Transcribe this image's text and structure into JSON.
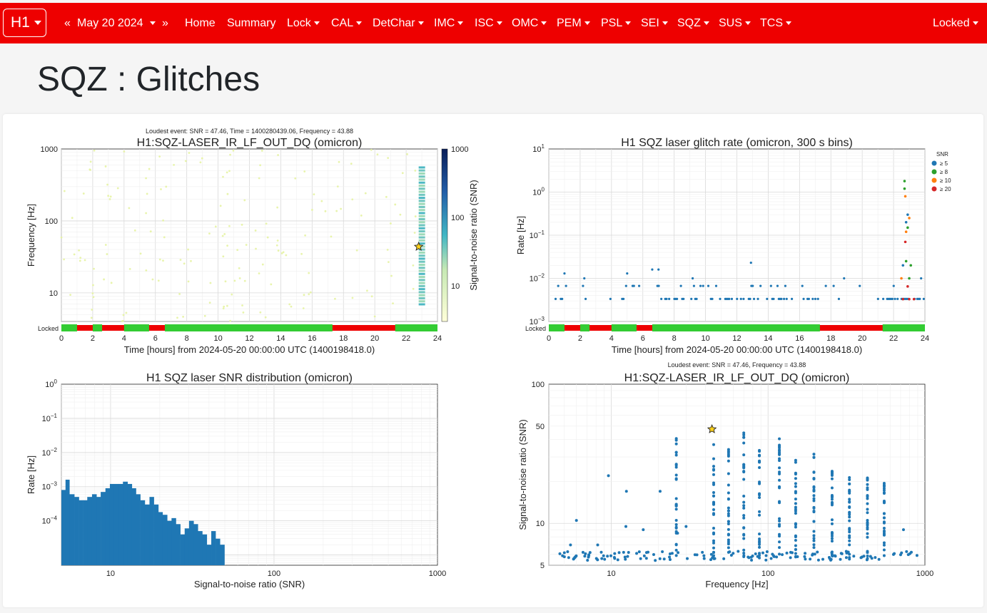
{
  "nav": {
    "ifo": "H1",
    "prev": "«",
    "date": "May 20 2024",
    "next": "»",
    "links": [
      "Home",
      "Summary"
    ],
    "menus": [
      "Lock",
      "CAL",
      "DetChar",
      "IMC",
      "ISC",
      "OMC",
      "PEM",
      "PSL",
      "SEI",
      "SQZ",
      "SUS",
      "TCS"
    ],
    "state": "Locked"
  },
  "page_title": "SQZ : Glitches",
  "colors": {
    "navbar": "#ee0000",
    "marker": "#1f77b4",
    "locked_on": "#33cc33",
    "locked_off": "#ee0000"
  },
  "chart_data": [
    {
      "type": "scatter",
      "subtitle": "Loudest event: SNR = 47.46, Time = 1400280439.06, Frequency = 43.88",
      "title": "H1:SQZ-LASER_IR_LF_OUT_DQ (omicron)",
      "xlabel": "Time [hours] from 2024-05-20 00:00:00 UTC (1400198418.0)",
      "ylabel": "Frequency [Hz]",
      "colorbar_label": "Signal-to-noise ratio (SNR)",
      "colorbar_ticks": [
        "1000",
        "100",
        "10"
      ],
      "xlim": [
        0,
        24
      ],
      "ylim": [
        4,
        1000
      ],
      "yscale": "log",
      "xticks": [
        "0",
        "2",
        "4",
        "6",
        "8",
        "10",
        "12",
        "14",
        "16",
        "18",
        "20",
        "22",
        "24"
      ],
      "yticks": [
        "1000",
        "100",
        "10"
      ],
      "segment_label": "Locked",
      "loudest": {
        "x": 22.8,
        "y": 43.88
      }
    },
    {
      "type": "scatter",
      "title": "H1 SQZ laser glitch rate (omicron, 300 s bins)",
      "xlabel": "Time [hours] from 2024-05-20 00:00:00 UTC (1400198418.0)",
      "ylabel": "Rate [Hz]",
      "xlim": [
        0,
        24
      ],
      "ylim": [
        0.001,
        10
      ],
      "yscale": "log",
      "xticks": [
        "0",
        "2",
        "4",
        "6",
        "8",
        "10",
        "12",
        "14",
        "16",
        "18",
        "20",
        "22",
        "24"
      ],
      "yticks": [
        {
          "base": "10",
          "exp": "1"
        },
        {
          "base": "10",
          "exp": "0"
        },
        {
          "base": "10",
          "exp": "−1"
        },
        {
          "base": "10",
          "exp": "−2"
        },
        {
          "base": "10",
          "exp": "−3"
        }
      ],
      "legend_title": "SNR",
      "series": [
        {
          "name": "≥ 5",
          "color": "#1f77b4"
        },
        {
          "name": "≥ 8",
          "color": "#2ca02c"
        },
        {
          "name": "≥ 10",
          "color": "#ff7f0e"
        },
        {
          "name": "≥ 20",
          "color": "#d62728"
        }
      ],
      "segment_label": "Locked"
    },
    {
      "type": "bar",
      "title": "H1 SQZ laser SNR distribution (omicron)",
      "xlabel": "Signal-to-noise ratio (SNR)",
      "ylabel": "Rate [Hz]",
      "xscale": "log",
      "yscale": "log",
      "xlim": [
        5,
        1000
      ],
      "ylim": [
        5e-06,
        1
      ],
      "xticks": [
        "10",
        "100",
        "1000"
      ],
      "yticks": [
        {
          "base": "10",
          "exp": "0"
        },
        {
          "base": "10",
          "exp": "−1"
        },
        {
          "base": "10",
          "exp": "−2"
        },
        {
          "base": "10",
          "exp": "−3"
        },
        {
          "base": "10",
          "exp": "−4"
        }
      ],
      "bins": [
        [
          5.0,
          0.0008
        ],
        [
          5.3,
          0.0016
        ],
        [
          5.6,
          0.0006
        ],
        [
          6.0,
          0.0005
        ],
        [
          6.4,
          0.0004
        ],
        [
          6.8,
          0.0004
        ],
        [
          7.2,
          0.0005
        ],
        [
          7.7,
          0.0006
        ],
        [
          8.2,
          0.0005
        ],
        [
          8.7,
          0.0007
        ],
        [
          9.3,
          0.0009
        ],
        [
          9.9,
          0.0012
        ],
        [
          10.5,
          0.0012
        ],
        [
          11.2,
          0.0012
        ],
        [
          11.9,
          0.0014
        ],
        [
          12.7,
          0.0012
        ],
        [
          13.5,
          0.0009
        ],
        [
          14.3,
          0.0006
        ],
        [
          15.2,
          0.0004
        ],
        [
          16.2,
          0.0003
        ],
        [
          17.3,
          0.0005
        ],
        [
          18.4,
          0.0003
        ],
        [
          19.6,
          0.00018
        ],
        [
          20.8,
          0.00015
        ],
        [
          22.2,
          0.0001
        ],
        [
          23.6,
          0.00012
        ],
        [
          25.1,
          8e-05
        ],
        [
          26.7,
          4e-05
        ],
        [
          28.4,
          6e-05
        ],
        [
          30.2,
          0.0001
        ],
        [
          32.2,
          8e-05
        ],
        [
          34.2,
          5e-05
        ],
        [
          36.4,
          4e-05
        ],
        [
          38.8,
          2e-05
        ],
        [
          41.3,
          5e-05
        ],
        [
          43.9,
          3e-05
        ],
        [
          46.7,
          2e-05
        ]
      ],
      "bar_color": "#1f77b4"
    },
    {
      "type": "scatter",
      "subtitle": "Loudest event: SNR = 47.46, Frequency = 43.88",
      "title": "H1:SQZ-LASER_IR_LF_OUT_DQ (omicron)",
      "xlabel": "Frequency [Hz]",
      "ylabel": "Signal-to-noise ratio (SNR)",
      "xscale": "log",
      "yscale": "log",
      "xlim": [
        4,
        1000
      ],
      "ylim": [
        5,
        100
      ],
      "xticks": [
        "10",
        "100",
        "1000"
      ],
      "yticks": [
        "100",
        "50",
        "10",
        "5"
      ],
      "loudest": {
        "x": 43.88,
        "y": 47.46
      },
      "marker_color": "#1f77b4"
    }
  ]
}
